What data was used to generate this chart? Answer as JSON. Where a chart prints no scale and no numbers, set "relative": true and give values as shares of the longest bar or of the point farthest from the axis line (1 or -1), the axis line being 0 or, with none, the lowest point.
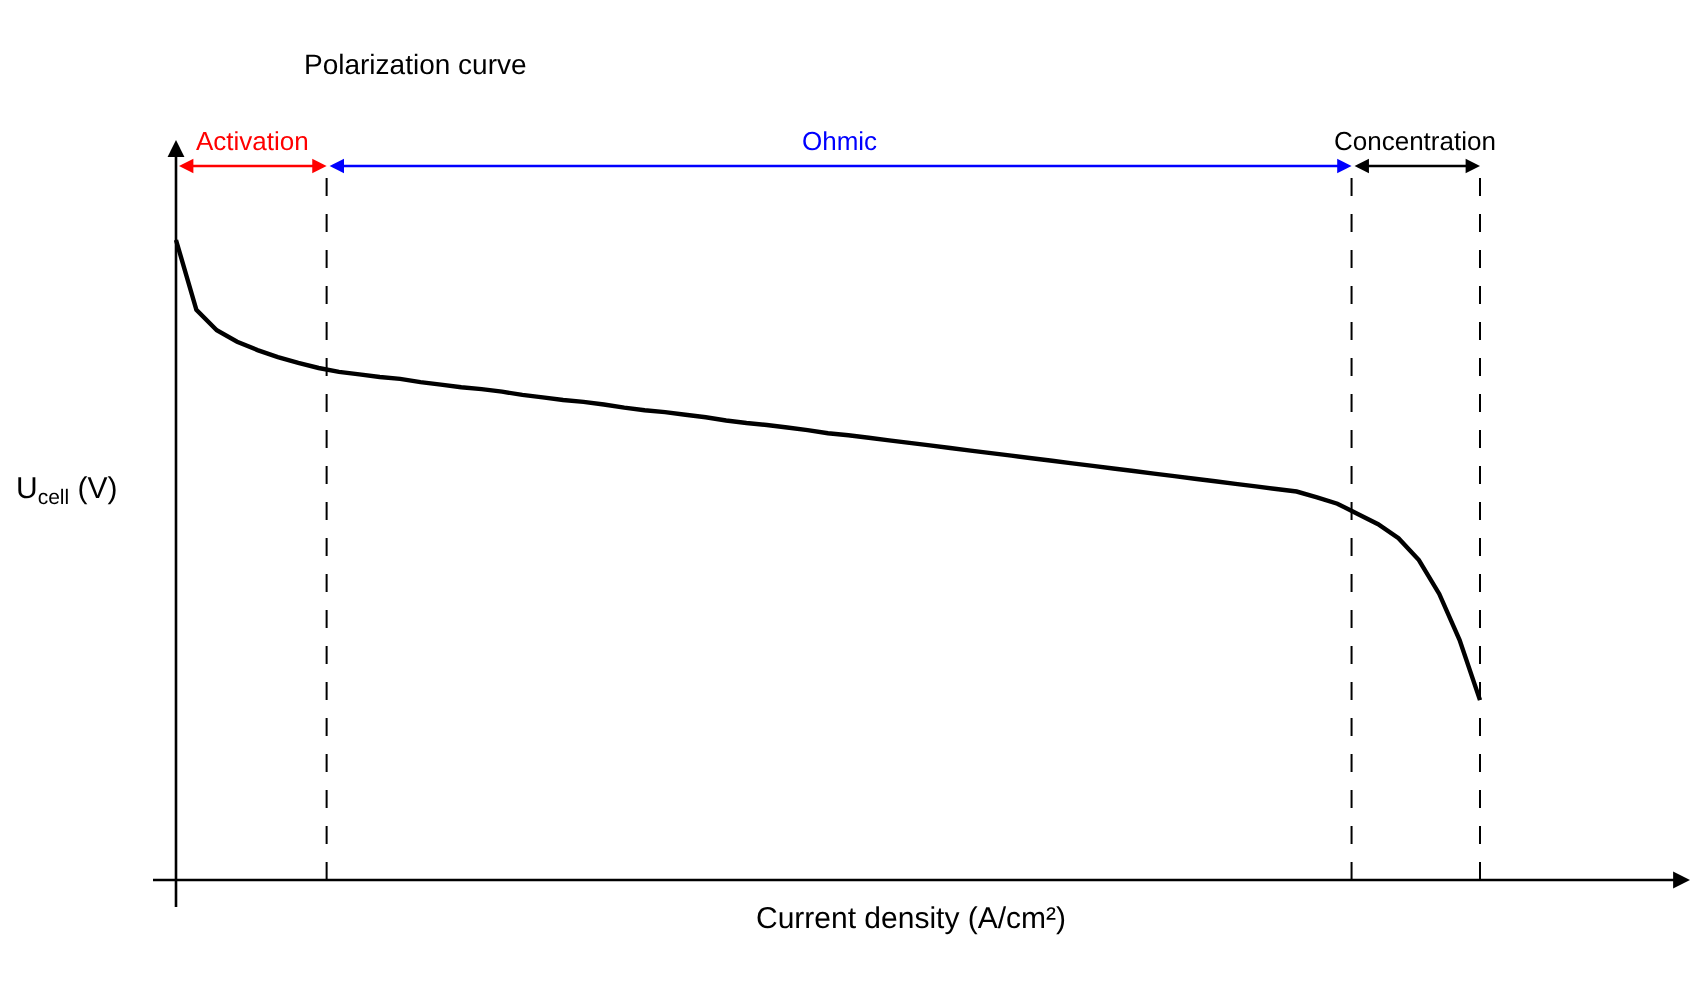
{
  "chart_data": {
    "type": "line",
    "title": "Polarization curve",
    "xlabel": "Current density (A/cm²)",
    "ylabel": "U$_{cell}$ (V)",
    "relative": true,
    "marker": "none",
    "line_style": "solid",
    "annotations": [
      "Activation",
      "Ohmic",
      "Concentration"
    ],
    "categories": [
      null,
      null,
      null,
      null,
      null,
      null,
      null,
      null,
      null,
      null,
      null,
      null,
      null,
      null,
      null,
      null,
      null,
      null,
      null,
      null,
      null,
      null,
      null,
      null,
      null,
      null,
      null,
      null,
      null,
      null,
      null,
      null,
      null,
      null,
      null,
      null,
      null,
      null,
      null,
      null,
      null,
      null,
      null,
      null,
      null,
      null,
      null,
      null,
      null,
      null,
      null,
      null,
      null,
      null,
      null,
      null,
      null,
      null,
      null,
      null,
      null,
      null,
      null,
      null,
      null
    ],
    "series": [
      {
        "color": "#000000",
        "values": [
          1.0,
          0.891,
          0.859,
          0.841,
          0.828,
          0.817,
          0.808,
          0.8,
          0.794,
          0.79,
          0.786,
          0.783,
          0.778,
          0.774,
          0.77,
          0.767,
          0.763,
          0.758,
          0.754,
          0.75,
          0.747,
          0.743,
          0.738,
          0.734,
          0.731,
          0.727,
          0.723,
          0.718,
          0.714,
          0.711,
          0.707,
          0.703,
          0.698,
          0.695,
          0.691,
          0.687,
          0.683,
          0.679,
          0.675,
          0.671,
          0.667,
          0.663,
          0.659,
          0.655,
          0.651,
          0.647,
          0.643,
          0.639,
          0.635,
          0.631,
          0.627,
          0.623,
          0.619,
          0.615,
          0.611,
          0.607,
          0.598,
          0.588,
          0.572,
          0.556,
          0.534,
          0.5,
          0.447,
          0.375,
          0.281
        ]
      }
    ]
  }
}
